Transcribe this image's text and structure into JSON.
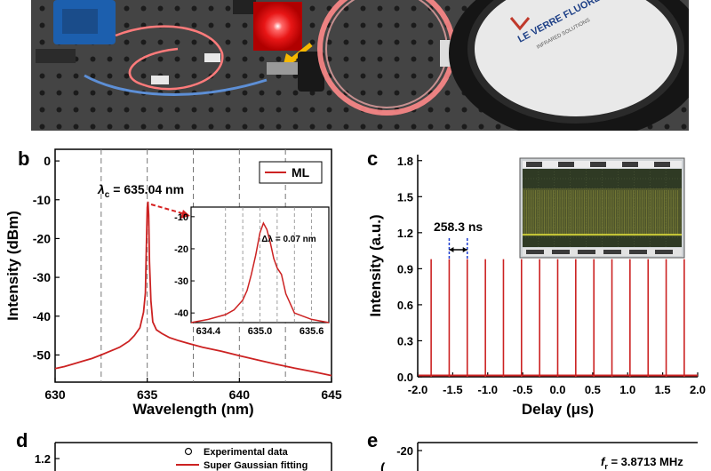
{
  "photo": {
    "label_a": "",
    "spool_brand": "LE VERRE FLUORÉ",
    "spool_subtext": "INFRARED SOLUTIONS",
    "colors": {
      "table": "#3f3f3f",
      "hole": "#1d1d1d",
      "fiber": "#ff6f6f",
      "spot": "#ff2a2a",
      "arrow": "#f5b800",
      "spool": "#2a2a2a"
    }
  },
  "chart_data": [
    {
      "id": "b",
      "panel_label": "b",
      "type": "line",
      "xlabel": "Wavelength (nm)",
      "ylabel": "Intensity (dBm)",
      "xlim": [
        630,
        645
      ],
      "ylim": [
        -57,
        3
      ],
      "xticks": [
        630,
        635,
        640,
        645
      ],
      "yticks": [
        0,
        -10,
        -20,
        -30,
        -40,
        -50
      ],
      "dashed_vlines": [
        632.5,
        635,
        637.5,
        640,
        642.5
      ],
      "legend": {
        "label": "ML",
        "position": "top-right"
      },
      "annotation": "λc = 635.04 nm",
      "annotation_prefix": "λ",
      "annotation_sub": "c",
      "annotation_value": " = 635.04 nm",
      "series": [
        {
          "color": "#cc2222",
          "x": [
            630,
            630.5,
            631,
            631.5,
            632,
            632.5,
            633,
            633.5,
            634,
            634.3,
            634.6,
            634.8,
            634.9,
            634.95,
            635.0,
            635.04,
            635.08,
            635.12,
            635.2,
            635.3,
            635.5,
            635.8,
            636.2,
            636.7,
            637.2,
            638,
            639,
            640,
            641,
            642,
            643,
            644,
            645
          ],
          "y": [
            -53.5,
            -53,
            -52.3,
            -51.6,
            -50.9,
            -50,
            -49,
            -48,
            -46.5,
            -45,
            -43,
            -39,
            -34,
            -23,
            -12,
            -10.5,
            -14,
            -26,
            -36,
            -41.5,
            -43.5,
            -44.5,
            -45.5,
            -46.3,
            -47,
            -48,
            -49,
            -50.2,
            -51.3,
            -52.4,
            -53.4,
            -54.3,
            -55.3
          ]
        }
      ],
      "inset": {
        "xlim": [
          634.2,
          635.8
        ],
        "ylim": [
          -43,
          -7
        ],
        "xticks": [
          634.4,
          635.0,
          635.6
        ],
        "xtick_labels": [
          "634.4",
          "635.0",
          "635.6"
        ],
        "yticks": [
          -10,
          -20,
          -30,
          -40
        ],
        "dashed_vlines": [
          634.6,
          634.8,
          635.0,
          635.2,
          635.4,
          635.6
        ],
        "annotation": "Δλ = 0.07 nm",
        "x": [
          634.2,
          634.4,
          634.6,
          634.7,
          634.8,
          634.85,
          634.9,
          634.95,
          635.0,
          635.04,
          635.08,
          635.12,
          635.16,
          635.2,
          635.25,
          635.3,
          635.4,
          635.5,
          635.6,
          635.8
        ],
        "y": [
          -43,
          -42,
          -40.5,
          -39,
          -36,
          -33,
          -28,
          -22,
          -15,
          -12,
          -14,
          -18,
          -23,
          -26,
          -28,
          -34,
          -40,
          -41,
          -42,
          -43
        ]
      }
    },
    {
      "id": "c",
      "panel_label": "c",
      "type": "line",
      "xlabel": "Delay (μs)",
      "ylabel": "Intensity (a.u.)",
      "xlim": [
        -2.0,
        2.0
      ],
      "ylim": [
        0,
        1.85
      ],
      "xticks": [
        -2.0,
        -1.5,
        -1.0,
        -0.5,
        0.0,
        0.5,
        1.0,
        1.5,
        2.0
      ],
      "xtick_labels": [
        "-2.0",
        "-1.5",
        "-1.0",
        "-0.5",
        "0.0",
        "0.5",
        "1.0",
        "1.5",
        "2.0"
      ],
      "yticks": [
        0.0,
        0.3,
        0.6,
        0.9,
        1.2,
        1.5,
        1.8
      ],
      "ytick_labels": [
        "0.0",
        "0.3",
        "0.6",
        "0.9",
        "1.2",
        "1.5",
        "1.8"
      ],
      "annotation": "258.3 ns",
      "pulse_period_us": 0.2583,
      "series": [
        {
          "color": "#cc2222",
          "pulse_x": [
            -1.808,
            -1.55,
            -1.292,
            -1.033,
            -0.775,
            -0.517,
            -0.258,
            0.0,
            0.258,
            0.517,
            0.775,
            1.033,
            1.292,
            1.55,
            1.808
          ],
          "pulse_y": [
            0.98,
            0.98,
            0.98,
            0.98,
            0.98,
            0.98,
            0.98,
            0.98,
            0.98,
            0.98,
            0.98,
            0.98,
            0.98,
            0.98,
            0.98
          ]
        }
      ],
      "inset": "oscilloscope screenshot"
    },
    {
      "id": "d",
      "panel_label": "d",
      "type": "scatter",
      "yticks_visible": [
        1.2
      ],
      "ytick_labels": [
        "1.2"
      ],
      "legend": [
        "Experimental data",
        "Super Gaussian fitting"
      ],
      "series": [
        {
          "name": "Experimental data",
          "marker": "open-circle",
          "color": "#111111"
        },
        {
          "name": "Super Gaussian fitting",
          "line": "solid",
          "color": "#cc2222"
        }
      ]
    },
    {
      "id": "e",
      "panel_label": "e",
      "type": "line",
      "yticks_visible": [
        -20
      ],
      "ytick_labels": [
        "-20"
      ],
      "annotation": "fr = 3.8713 MHz",
      "annotation_prefix": "f",
      "annotation_sub": "r",
      "annotation_value": " = 3.8713 MHz"
    }
  ]
}
